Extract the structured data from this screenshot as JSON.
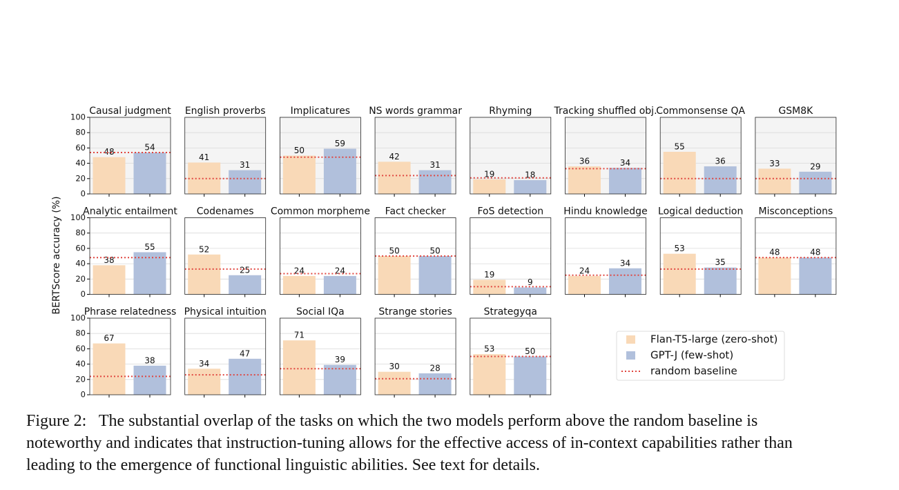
{
  "figure": {
    "ylabel": "BERTScore accuracy (%)",
    "caption": [
      "Figure 2:  The substantial overlap of the tasks on which the two models perform above the random baseline is",
      "noteworthy and indicates that instruction-tuning allows for the effective access of in-context capabilities rather than",
      "leading to the emergence of functional linguistic abilities. See text for details."
    ],
    "legend": {
      "position": "lower right",
      "entries": [
        {
          "name": "Flan-T5-large (zero-shot)",
          "color": "#f9d9b7"
        },
        {
          "name": "GPT-J (few-shot)",
          "color": "#b1c0dc"
        },
        {
          "name": "random baseline",
          "color": "#e0443e"
        }
      ]
    }
  },
  "chart_data": [
    {
      "type": "bar",
      "title": "Causal judgment",
      "values": [
        48,
        54
      ],
      "baseline": 54,
      "ylim": [
        0,
        100
      ],
      "yticks": [
        0,
        20,
        40,
        60,
        80,
        100
      ],
      "background": "#f4f4f4"
    },
    {
      "type": "bar",
      "title": "English proverbs",
      "values": [
        41,
        31
      ],
      "baseline": 20,
      "ylim": [
        0,
        100
      ],
      "background": "#f4f4f4"
    },
    {
      "type": "bar",
      "title": "Implicatures",
      "values": [
        50,
        59
      ],
      "baseline": 48,
      "ylim": [
        0,
        100
      ],
      "background": "#f4f4f4"
    },
    {
      "type": "bar",
      "title": "NS words grammar",
      "values": [
        42,
        31
      ],
      "baseline": 24,
      "ylim": [
        0,
        100
      ],
      "background": "#f4f4f4"
    },
    {
      "type": "bar",
      "title": "Rhyming",
      "values": [
        19,
        18
      ],
      "baseline": 21,
      "ylim": [
        0,
        100
      ],
      "background": "#f4f4f4"
    },
    {
      "type": "bar",
      "title": "Tracking shuffled obj.",
      "values": [
        36,
        34
      ],
      "baseline": 33,
      "ylim": [
        0,
        100
      ],
      "background": "#f4f4f4"
    },
    {
      "type": "bar",
      "title": "Commonsense QA",
      "values": [
        55,
        36
      ],
      "baseline": 20,
      "ylim": [
        0,
        100
      ],
      "background": "#f4f4f4"
    },
    {
      "type": "bar",
      "title": "GSM8K",
      "values": [
        33,
        29
      ],
      "baseline": 20,
      "ylim": [
        0,
        100
      ],
      "background": "#f4f4f4"
    },
    {
      "type": "bar",
      "title": "Analytic entailment",
      "values": [
        38,
        55
      ],
      "baseline": 48,
      "ylim": [
        0,
        100
      ],
      "yticks": [
        0,
        20,
        40,
        60,
        80,
        100
      ],
      "background": "#ffffff"
    },
    {
      "type": "bar",
      "title": "Codenames",
      "values": [
        52,
        25
      ],
      "baseline": 33,
      "ylim": [
        0,
        100
      ],
      "background": "#ffffff"
    },
    {
      "type": "bar",
      "title": "Common morpheme",
      "values": [
        24,
        24
      ],
      "baseline": 27,
      "ylim": [
        0,
        100
      ],
      "background": "#ffffff"
    },
    {
      "type": "bar",
      "title": "Fact checker",
      "values": [
        50,
        50
      ],
      "baseline": 50,
      "ylim": [
        0,
        100
      ],
      "background": "#ffffff"
    },
    {
      "type": "bar",
      "title": "FoS detection",
      "values": [
        19,
        9
      ],
      "baseline": 10,
      "ylim": [
        0,
        100
      ],
      "background": "#ffffff"
    },
    {
      "type": "bar",
      "title": "Hindu knowledge",
      "values": [
        24,
        34
      ],
      "baseline": 25,
      "ylim": [
        0,
        100
      ],
      "background": "#ffffff"
    },
    {
      "type": "bar",
      "title": "Logical deduction",
      "values": [
        53,
        35
      ],
      "baseline": 33,
      "ylim": [
        0,
        100
      ],
      "background": "#ffffff"
    },
    {
      "type": "bar",
      "title": "Misconceptions",
      "values": [
        48,
        48
      ],
      "baseline": 48,
      "ylim": [
        0,
        100
      ],
      "background": "#ffffff"
    },
    {
      "type": "bar",
      "title": "Phrase relatedness",
      "values": [
        67,
        38
      ],
      "baseline": 24,
      "ylim": [
        0,
        100
      ],
      "yticks": [
        0,
        20,
        40,
        60,
        80,
        100
      ],
      "background": "#ffffff"
    },
    {
      "type": "bar",
      "title": "Physical intuition",
      "values": [
        34,
        47
      ],
      "baseline": 26,
      "ylim": [
        0,
        100
      ],
      "background": "#ffffff"
    },
    {
      "type": "bar",
      "title": "Social IQa",
      "values": [
        71,
        39
      ],
      "baseline": 34,
      "ylim": [
        0,
        100
      ],
      "background": "#ffffff"
    },
    {
      "type": "bar",
      "title": "Strange stories",
      "values": [
        30,
        28
      ],
      "baseline": 21,
      "ylim": [
        0,
        100
      ],
      "background": "#ffffff"
    },
    {
      "type": "bar",
      "title": "Strategyqa",
      "values": [
        53,
        50
      ],
      "baseline": 50,
      "ylim": [
        0,
        100
      ],
      "background": "#ffffff"
    }
  ]
}
